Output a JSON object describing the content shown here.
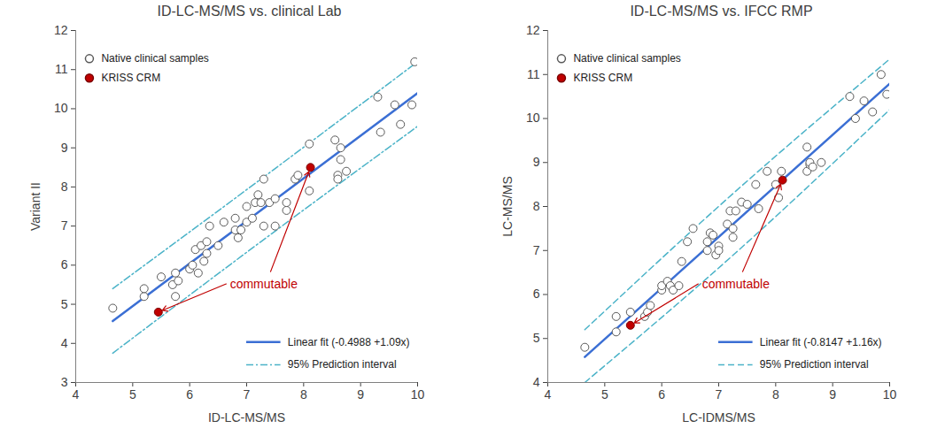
{
  "chart_data": [
    {
      "type": "scatter",
      "title": "ID-LC-MS/MS vs. clinical Lab",
      "x_label": "ID-LC-MS/MS",
      "y_label": "Variant II",
      "xlim": [
        4,
        10
      ],
      "ylim": [
        3,
        12
      ],
      "xticks": [
        4,
        5,
        6,
        7,
        8,
        9,
        10
      ],
      "yticks": [
        3,
        4,
        5,
        6,
        7,
        8,
        9,
        10,
        11,
        12
      ],
      "annotation": "commutable",
      "series": [
        {
          "name": "Native clinical samples",
          "type": "scatter",
          "marker": "open_circle",
          "color": "#595959",
          "x": [
            4.65,
            5.2,
            5.2,
            5.5,
            5.7,
            5.75,
            5.8,
            5.75,
            6.0,
            6.05,
            6.1,
            6.15,
            6.2,
            6.25,
            6.3,
            6.3,
            6.35,
            6.5,
            6.6,
            6.8,
            6.8,
            6.85,
            6.9,
            7.0,
            7.0,
            7.1,
            7.15,
            7.2,
            7.25,
            7.3,
            7.3,
            7.4,
            7.5,
            7.5,
            7.7,
            7.7,
            7.85,
            7.9,
            8.1,
            8.1,
            8.55,
            8.6,
            8.6,
            8.65,
            8.65,
            8.75,
            9.3,
            9.35,
            9.6,
            9.7,
            9.9,
            9.95
          ],
          "values": [
            4.9,
            5.2,
            5.4,
            5.7,
            5.5,
            5.8,
            5.6,
            5.2,
            5.9,
            6.0,
            6.4,
            5.8,
            6.5,
            6.1,
            6.6,
            6.3,
            7.0,
            6.5,
            7.1,
            7.2,
            6.9,
            6.7,
            6.9,
            7.1,
            7.5,
            7.2,
            7.6,
            7.8,
            7.6,
            8.2,
            7.0,
            7.6,
            7.0,
            7.7,
            7.4,
            7.6,
            8.2,
            8.3,
            9.1,
            7.9,
            9.2,
            8.3,
            8.2,
            9.0,
            8.7,
            8.4,
            10.3,
            9.4,
            10.1,
            9.6,
            10.1,
            11.2
          ]
        },
        {
          "name": "KRISS CRM",
          "type": "scatter",
          "marker": "circle",
          "color": "#c00000",
          "x": [
            5.45,
            8.12
          ],
          "values": [
            4.8,
            8.5
          ]
        },
        {
          "name": "Linear fit (-0.4988 +1.09x)",
          "type": "line",
          "line_style": "solid",
          "color": "#3b6fd4",
          "x": [
            4.65,
            10
          ],
          "values": [
            4.57,
            10.4
          ]
        },
        {
          "name": "95% Prediction interval",
          "type": "line",
          "line_style": "dashdot",
          "color": "#4bb3c8",
          "x": [
            4.65,
            7.25,
            10
          ],
          "upper": [
            5.4,
            8.2,
            11.2
          ],
          "lower": [
            3.75,
            6.6,
            9.55
          ]
        }
      ]
    },
    {
      "type": "scatter",
      "title": "ID-LC-MS/MS vs. IFCC RMP",
      "x_label": "LC-IDMS/MS",
      "y_label": "LC-MS/MS",
      "xlim": [
        4,
        10
      ],
      "ylim": [
        4,
        12
      ],
      "xticks": [
        4,
        5,
        6,
        7,
        8,
        9,
        10
      ],
      "yticks": [
        4,
        5,
        6,
        7,
        8,
        9,
        10,
        11,
        12
      ],
      "annotation": "commutable",
      "series": [
        {
          "name": "Native clinical samples",
          "type": "scatter",
          "marker": "open_circle",
          "color": "#595959",
          "x": [
            4.65,
            5.2,
            5.2,
            5.45,
            5.7,
            5.75,
            5.8,
            6.0,
            6.0,
            6.1,
            6.15,
            6.2,
            6.3,
            6.35,
            6.45,
            6.55,
            6.8,
            6.8,
            6.85,
            6.9,
            6.95,
            7.0,
            7.0,
            7.15,
            7.2,
            7.25,
            7.25,
            7.3,
            7.4,
            7.5,
            7.65,
            7.7,
            7.85,
            8.0,
            8.05,
            8.1,
            8.55,
            8.55,
            8.6,
            8.6,
            8.65,
            8.8,
            9.3,
            9.4,
            9.55,
            9.7,
            9.85,
            9.95
          ],
          "values": [
            4.8,
            5.15,
            5.5,
            5.6,
            5.5,
            5.6,
            5.75,
            6.1,
            6.2,
            6.3,
            6.2,
            6.1,
            6.2,
            6.75,
            7.2,
            7.5,
            7.0,
            7.2,
            7.4,
            7.35,
            6.9,
            7.1,
            7.0,
            7.6,
            7.9,
            7.3,
            7.5,
            7.9,
            8.1,
            8.05,
            8.5,
            7.95,
            8.8,
            8.5,
            8.2,
            8.8,
            9.35,
            8.8,
            8.95,
            9.0,
            8.9,
            9.0,
            10.5,
            10.0,
            10.4,
            10.15,
            11.0,
            10.55
          ]
        },
        {
          "name": "KRISS CRM",
          "type": "scatter",
          "marker": "circle",
          "color": "#c00000",
          "x": [
            5.45,
            8.12
          ],
          "values": [
            5.3,
            8.6
          ]
        },
        {
          "name": "Linear fit (-0.8147 +1.16x)",
          "type": "line",
          "line_style": "solid",
          "color": "#3b6fd4",
          "x": [
            4.65,
            10
          ],
          "values": [
            4.58,
            10.79
          ]
        },
        {
          "name": "95% Prediction interval",
          "type": "line",
          "line_style": "dashed",
          "color": "#4bb3c8",
          "x": [
            4.65,
            7.3,
            10
          ],
          "upper": [
            5.2,
            8.35,
            11.35
          ],
          "lower": [
            4.0,
            6.95,
            10.2
          ]
        }
      ]
    }
  ]
}
